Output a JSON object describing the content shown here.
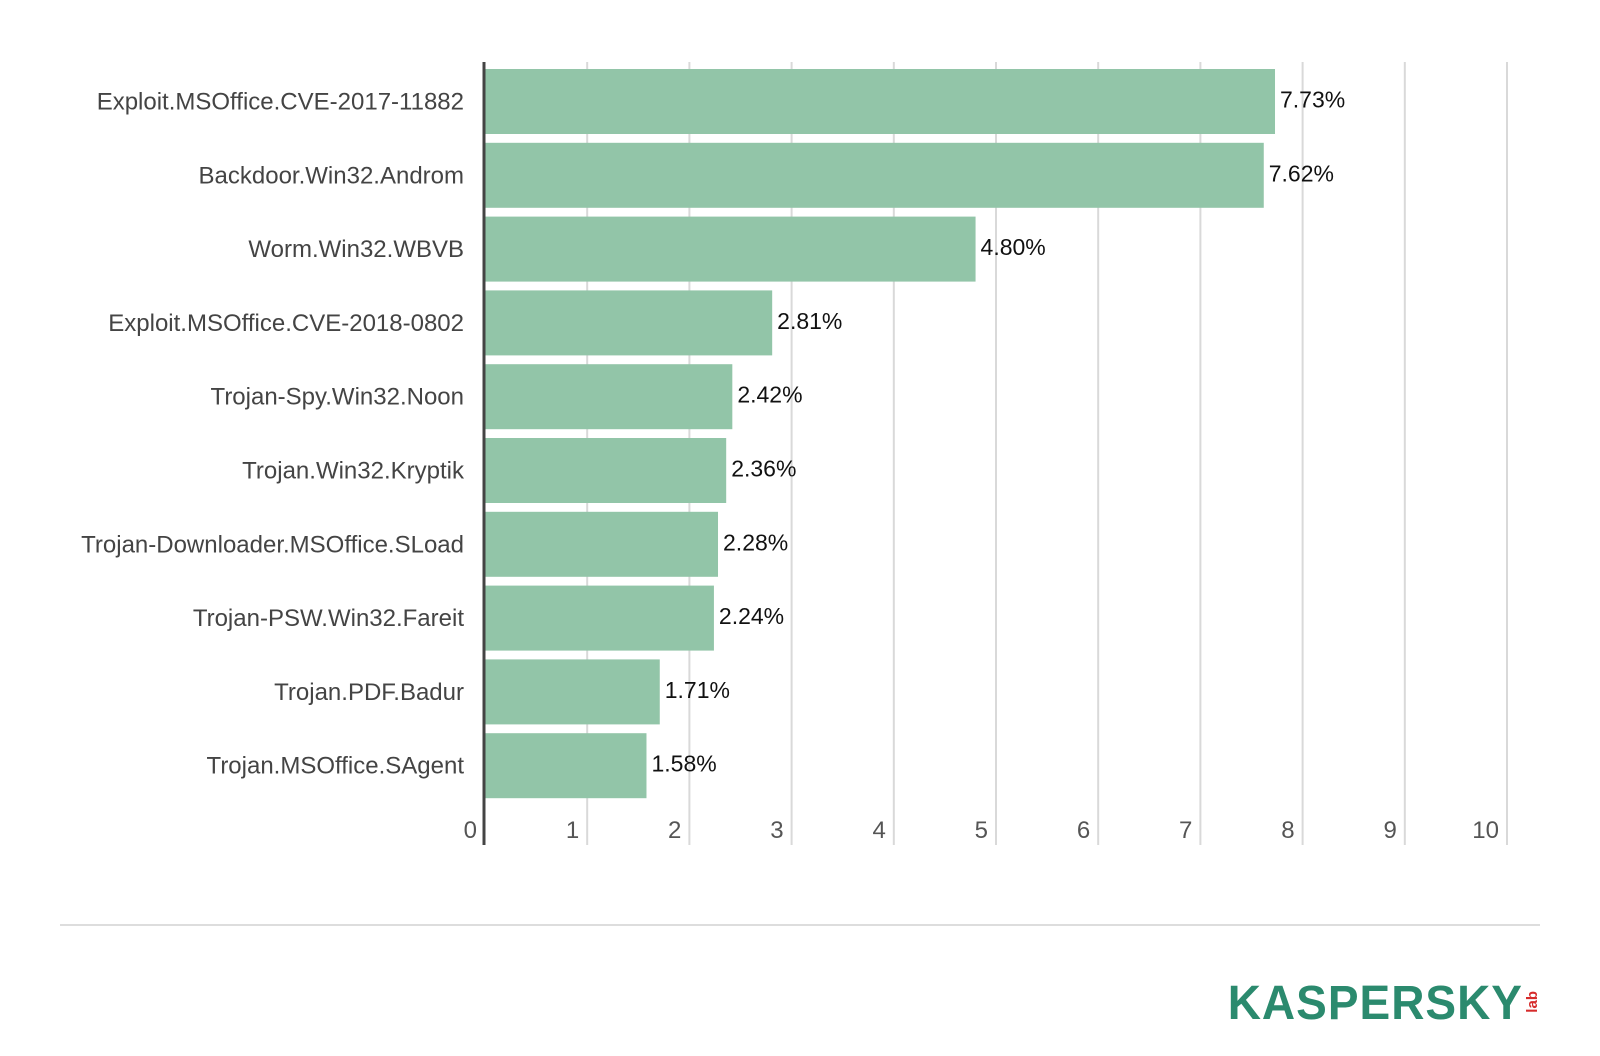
{
  "chart_data": {
    "type": "bar",
    "orientation": "horizontal",
    "categories": [
      "Exploit.MSOffice.CVE-2017-11882",
      "Backdoor.Win32.Androm",
      "Worm.Win32.WBVB",
      "Exploit.MSOffice.CVE-2018-0802",
      "Trojan-Spy.Win32.Noon",
      "Trojan.Win32.Kryptik",
      "Trojan-Downloader.MSOffice.SLoad",
      "Trojan-PSW.Win32.Fareit",
      "Trojan.PDF.Badur",
      "Trojan.MSOffice.SAgent"
    ],
    "values": [
      7.73,
      7.62,
      4.8,
      2.81,
      2.42,
      2.36,
      2.28,
      2.24,
      1.71,
      1.58
    ],
    "value_labels": [
      "7.73%",
      "7.62%",
      "4.80%",
      "2.81%",
      "2.42%",
      "2.36%",
      "2.28%",
      "2.24%",
      "1.71%",
      "1.58%"
    ],
    "xlim": [
      0,
      10
    ],
    "x_ticks": [
      "0",
      "1",
      "2",
      "3",
      "4",
      "5",
      "6",
      "7",
      "8",
      "9",
      "10"
    ],
    "grid": "vertical",
    "bar_color": "#92c5a8",
    "axis_color": "#444444",
    "grid_color": "#d9d9d9"
  },
  "logo": {
    "word": "KASPERSKY",
    "sub": "lab",
    "word_color": "#2b8a6e",
    "sub_color": "#d62b2b"
  }
}
